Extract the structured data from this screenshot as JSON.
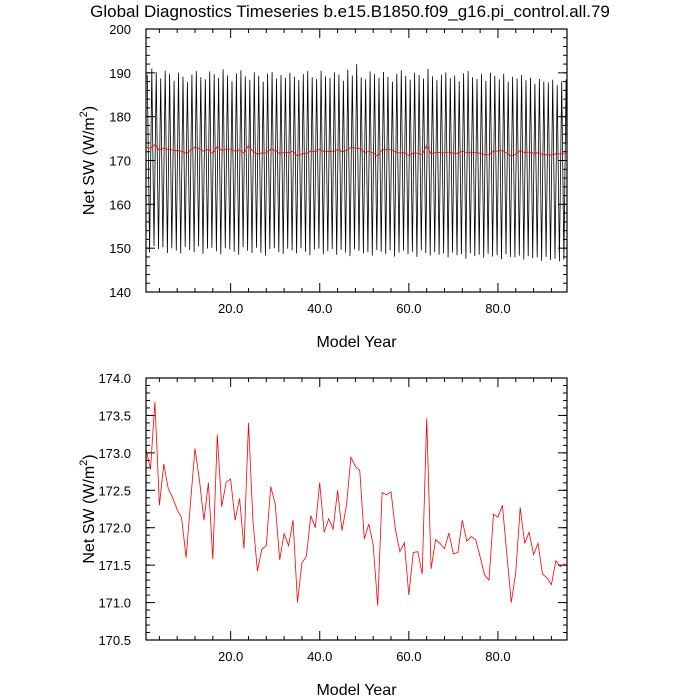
{
  "title": "Global Diagnostics Timeseries b.e15.B1850.f09_g16.pi_control.all.79",
  "colors": {
    "monthly": "#000000",
    "annual": "#ff0000"
  },
  "chart_data": [
    {
      "type": "line",
      "xlabel": "Model Year",
      "ylabel_main": "Net SW (W/m",
      "ylabel_sup": "2",
      "ylabel_end": ")",
      "xlim": [
        1,
        95.5
      ],
      "ylim": [
        140,
        200
      ],
      "xticks": [
        20,
        40,
        60,
        80
      ],
      "xtick_labels": [
        "20.0",
        "40.0",
        "60.0",
        "80.0"
      ],
      "yticks": [
        140,
        150,
        160,
        170,
        180,
        190,
        200
      ],
      "ytick_labels": [
        "140",
        "150",
        "160",
        "170",
        "180",
        "190",
        "200"
      ],
      "monthly_max": [
        189.5,
        191.0,
        190.2,
        188.7,
        190.5,
        189.8,
        188.2,
        190.0,
        189.1,
        187.9,
        189.6,
        190.4,
        189.0,
        188.5,
        190.3,
        189.7,
        188.9,
        190.8,
        189.4,
        188.1,
        189.9,
        190.6,
        189.2,
        188.4,
        190.1,
        189.3,
        188.0,
        189.8,
        190.2,
        188.7,
        189.5,
        188.9,
        190.0,
        189.1,
        188.3,
        189.7,
        190.4,
        189.0,
        188.6,
        190.5,
        189.2,
        188.8,
        190.1,
        189.6,
        188.2,
        190.7,
        189.4,
        192.0,
        189.0,
        188.5,
        190.3,
        189.7,
        188.9,
        190.2,
        189.1,
        188.0,
        189.8,
        190.6,
        189.3,
        188.4,
        190.0,
        189.5,
        188.7,
        190.9,
        189.2,
        188.3,
        189.6,
        190.1,
        188.8,
        189.4,
        188.1,
        189.9,
        190.4,
        189.0,
        188.6,
        189.7,
        188.2,
        190.0,
        189.3,
        188.5,
        189.8,
        188.0,
        189.1,
        188.7,
        189.5,
        188.3,
        188.9,
        187.5,
        188.6,
        188.0,
        187.8,
        188.4,
        187.2,
        188.1,
        188.5
      ],
      "monthly_min": [
        149.0,
        150.5,
        149.8,
        150.2,
        148.9,
        150.0,
        149.5,
        148.8,
        150.3,
        149.6,
        149.1,
        150.4,
        148.7,
        149.9,
        150.1,
        149.3,
        148.6,
        150.0,
        149.7,
        149.2,
        148.5,
        150.2,
        149.4,
        148.9,
        150.1,
        149.0,
        148.3,
        149.8,
        150.0,
        149.1,
        148.7,
        149.9,
        149.5,
        148.8,
        150.0,
        149.2,
        148.4,
        149.7,
        149.9,
        148.6,
        149.3,
        149.8,
        148.5,
        149.6,
        149.0,
        148.2,
        149.7,
        149.4,
        148.8,
        149.1,
        148.3,
        149.6,
        149.2,
        148.7,
        149.5,
        148.1,
        149.0,
        149.4,
        148.6,
        149.2,
        148.0,
        149.5,
        148.9,
        148.3,
        149.1,
        148.5,
        148.8,
        147.9,
        149.0,
        148.4,
        148.6,
        147.6,
        148.9,
        148.2,
        148.5,
        147.8,
        148.7,
        148.1,
        148.4,
        147.5,
        148.6,
        148.0,
        147.9,
        148.3,
        147.4,
        148.2,
        147.7,
        147.9,
        147.1,
        148.0,
        147.3,
        147.6,
        147.0,
        147.4,
        147.8
      ],
      "annual_x": [
        1,
        2,
        3,
        4,
        5,
        6,
        7,
        8,
        9,
        10,
        11,
        12,
        13,
        14,
        15,
        16,
        17,
        18,
        19,
        20,
        21,
        22,
        23,
        24,
        25,
        26,
        27,
        28,
        29,
        30,
        31,
        32,
        33,
        34,
        35,
        36,
        37,
        38,
        39,
        40,
        41,
        42,
        43,
        44,
        45,
        46,
        47,
        48,
        49,
        50,
        51,
        52,
        53,
        54,
        55,
        56,
        57,
        58,
        59,
        60,
        61,
        62,
        63,
        64,
        65,
        66,
        67,
        68,
        69,
        70,
        71,
        72,
        73,
        74,
        75,
        76,
        77,
        78,
        79,
        80,
        81,
        82,
        83,
        84,
        85,
        86,
        87,
        88,
        89,
        90,
        91,
        92,
        93,
        94,
        95
      ],
      "annual": [
        173.05,
        172.78,
        173.68,
        172.3,
        172.85,
        172.52,
        172.4,
        172.24,
        172.13,
        171.6,
        172.35,
        173.06,
        172.63,
        172.1,
        172.6,
        171.58,
        173.24,
        172.28,
        172.61,
        172.65,
        172.1,
        172.39,
        171.72,
        173.4,
        172.1,
        171.42,
        171.71,
        171.76,
        172.55,
        172.32,
        171.57,
        171.92,
        171.76,
        172.1,
        171.0,
        171.53,
        171.62,
        172.16,
        172.0,
        172.6,
        171.94,
        172.12,
        171.98,
        172.5,
        171.96,
        172.3,
        172.94,
        172.82,
        172.76,
        171.85,
        172.05,
        171.77,
        170.96,
        172.47,
        172.44,
        172.48,
        171.97,
        171.68,
        171.8,
        171.1,
        171.67,
        171.68,
        171.38,
        173.46,
        171.45,
        171.84,
        171.79,
        171.72,
        171.93,
        171.65,
        171.67,
        172.1,
        171.82,
        171.88,
        171.84,
        171.61,
        171.37,
        171.3,
        172.18,
        172.14,
        172.3,
        171.64,
        171.0,
        171.41,
        172.27,
        171.79,
        171.94,
        171.64,
        171.79,
        171.38,
        171.33,
        171.24,
        171.56,
        171.48,
        171.52
      ]
    },
    {
      "type": "line",
      "xlabel": "Model Year",
      "ylabel_main": "Net SW (W/m",
      "ylabel_sup": "2",
      "ylabel_end": ")",
      "xlim": [
        1,
        95.5
      ],
      "ylim": [
        170.5,
        174.0
      ],
      "xticks": [
        20,
        40,
        60,
        80
      ],
      "xtick_labels": [
        "20.0",
        "40.0",
        "60.0",
        "80.0"
      ],
      "yticks": [
        170.5,
        171.0,
        171.5,
        172.0,
        172.5,
        173.0,
        173.5,
        174.0
      ],
      "ytick_labels": [
        "170.5",
        "171.0",
        "171.5",
        "172.0",
        "172.5",
        "173.0",
        "173.5",
        "174.0"
      ],
      "annual_x": [
        1,
        2,
        3,
        4,
        5,
        6,
        7,
        8,
        9,
        10,
        11,
        12,
        13,
        14,
        15,
        16,
        17,
        18,
        19,
        20,
        21,
        22,
        23,
        24,
        25,
        26,
        27,
        28,
        29,
        30,
        31,
        32,
        33,
        34,
        35,
        36,
        37,
        38,
        39,
        40,
        41,
        42,
        43,
        44,
        45,
        46,
        47,
        48,
        49,
        50,
        51,
        52,
        53,
        54,
        55,
        56,
        57,
        58,
        59,
        60,
        61,
        62,
        63,
        64,
        65,
        66,
        67,
        68,
        69,
        70,
        71,
        72,
        73,
        74,
        75,
        76,
        77,
        78,
        79,
        80,
        81,
        82,
        83,
        84,
        85,
        86,
        87,
        88,
        89,
        90,
        91,
        92,
        93,
        94,
        95
      ],
      "annual": [
        173.05,
        172.78,
        173.68,
        172.3,
        172.85,
        172.52,
        172.4,
        172.24,
        172.13,
        171.6,
        172.35,
        173.06,
        172.63,
        172.1,
        172.6,
        171.58,
        173.24,
        172.28,
        172.61,
        172.65,
        172.1,
        172.39,
        171.72,
        173.4,
        172.1,
        171.42,
        171.71,
        171.76,
        172.55,
        172.32,
        171.57,
        171.92,
        171.76,
        172.1,
        171.0,
        171.53,
        171.62,
        172.16,
        172.0,
        172.6,
        171.94,
        172.12,
        171.98,
        172.5,
        171.96,
        172.3,
        172.94,
        172.82,
        172.76,
        171.85,
        172.05,
        171.77,
        170.96,
        172.47,
        172.44,
        172.48,
        171.97,
        171.68,
        171.8,
        171.1,
        171.67,
        171.68,
        171.38,
        173.46,
        171.45,
        171.84,
        171.79,
        171.72,
        171.93,
        171.65,
        171.67,
        172.1,
        171.82,
        171.88,
        171.84,
        171.61,
        171.37,
        171.3,
        172.18,
        172.14,
        172.3,
        171.64,
        171.0,
        171.41,
        172.27,
        171.79,
        171.94,
        171.64,
        171.79,
        171.38,
        171.33,
        171.24,
        171.56,
        171.48,
        171.52
      ]
    }
  ]
}
